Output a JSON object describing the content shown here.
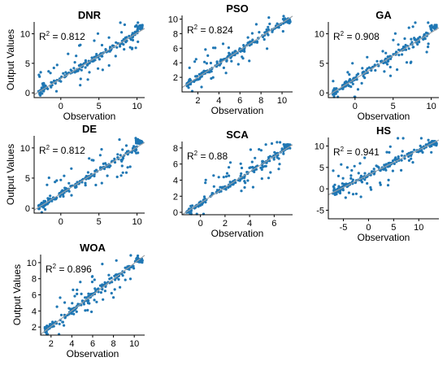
{
  "colors": {
    "marker": "#1f77b4",
    "fit_line": "#9aa0a6",
    "axis": "#000000"
  },
  "chart_data": [
    {
      "type": "scatter",
      "title": "DNR",
      "xlabel": "Observation",
      "ylabel": "Output Values",
      "xlim": [
        -3.5,
        11
      ],
      "ylim": [
        -0.8,
        12
      ],
      "xticks": [
        0,
        5,
        10
      ],
      "yticks": [
        0,
        5,
        10
      ],
      "r2_label": "R",
      "r2_value": "= 0.812",
      "fit": [
        [
          -3.5,
          -0.3
        ],
        [
          11,
          10.9
        ]
      ]
    },
    {
      "type": "scatter",
      "title": "PSO",
      "xlabel": "Observation",
      "ylabel": "",
      "xlim": [
        0.5,
        11
      ],
      "ylim": [
        0,
        10.5
      ],
      "xticks": [
        2,
        4,
        6,
        8,
        10
      ],
      "yticks": [
        2,
        4,
        6,
        8,
        10
      ],
      "r2_label": "R",
      "r2_value": "= 0.824",
      "fit": [
        [
          0.5,
          0.6
        ],
        [
          11,
          10.4
        ]
      ]
    },
    {
      "type": "scatter",
      "title": "GA",
      "xlabel": "Observation",
      "ylabel": "",
      "xlim": [
        -3.5,
        11
      ],
      "ylim": [
        -0.8,
        12
      ],
      "xticks": [
        0,
        5,
        10
      ],
      "yticks": [
        0,
        5,
        10
      ],
      "r2_label": "R",
      "r2_value": "= 0.908",
      "fit": [
        [
          -3.5,
          -0.4
        ],
        [
          11,
          11
        ]
      ]
    },
    {
      "type": "scatter",
      "title": "DE",
      "xlabel": "",
      "ylabel": "Output Values",
      "xlim": [
        -3.5,
        11
      ],
      "ylim": [
        -0.8,
        12
      ],
      "xticks": [
        0,
        5,
        10
      ],
      "yticks": [
        0,
        5,
        10
      ],
      "r2_label": "R",
      "r2_value": "= 0.812",
      "fit": [
        [
          -3.5,
          -0.3
        ],
        [
          11,
          10.9
        ]
      ]
    },
    {
      "type": "scatter",
      "title": "SCA",
      "xlabel": "Observation",
      "ylabel": "",
      "xlim": [
        -1.5,
        7.5
      ],
      "ylim": [
        -0.3,
        8.8
      ],
      "xticks": [
        0,
        2,
        4,
        6
      ],
      "yticks": [
        0,
        2,
        4,
        6,
        8
      ],
      "r2_label": "R",
      "r2_value": "= 0.88",
      "fit": [
        [
          -1.5,
          -0.3
        ],
        [
          7.5,
          8.4
        ]
      ]
    },
    {
      "type": "scatter",
      "title": "HS",
      "xlabel": "Observation",
      "ylabel": "",
      "xlim": [
        -8,
        14
      ],
      "ylim": [
        -7,
        12
      ],
      "xticks": [
        -5,
        0,
        5,
        10
      ],
      "yticks": [
        -5,
        0,
        5,
        10
      ],
      "r2_label": "R",
      "r2_value": "= 0.941",
      "fit": [
        [
          -8,
          -1.4
        ],
        [
          14,
          11.4
        ]
      ]
    },
    {
      "type": "scatter",
      "title": "WOA",
      "xlabel": "Observation",
      "ylabel": "Output Values",
      "xlim": [
        1,
        11
      ],
      "ylim": [
        1,
        11
      ],
      "xticks": [
        2,
        4,
        6,
        8,
        10
      ],
      "yticks": [
        2,
        4,
        6,
        8,
        10
      ],
      "r2_label": "R",
      "r2_value": "= 0.896",
      "fit": [
        [
          1,
          1.1
        ],
        [
          11,
          10.9
        ]
      ]
    }
  ]
}
